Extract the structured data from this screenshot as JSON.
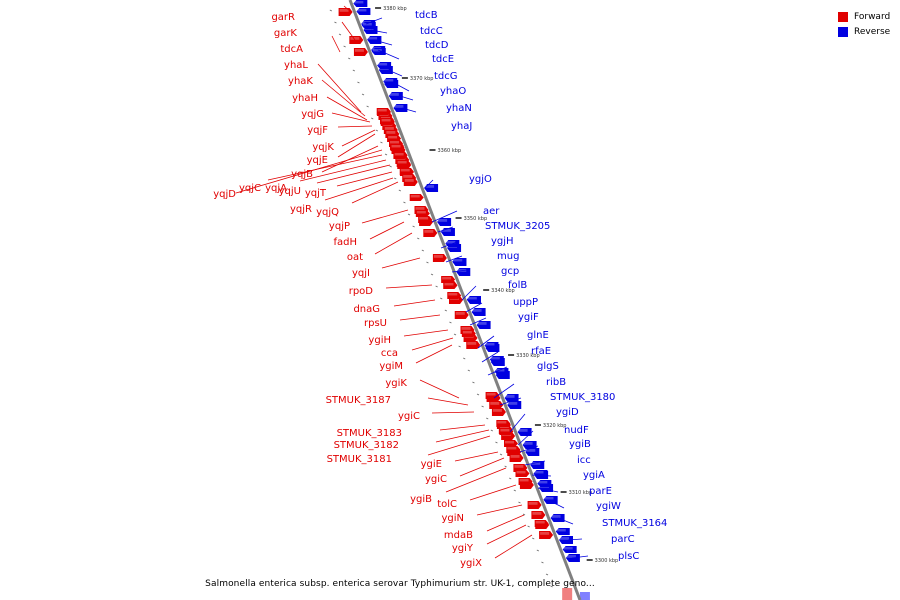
{
  "colors": {
    "forward": "#e00000",
    "reverse": "#0000e0",
    "backbone": "#808080",
    "light_forward": "#f08080",
    "light_reverse": "#8080ff"
  },
  "legend": {
    "forward_label": "Forward",
    "reverse_label": "Reverse"
  },
  "caption": "Salmonella enterica subsp. enterica serovar Typhimurium str. UK-1, complete geno...",
  "ticks": [
    "3380 kbp",
    "3370 kbp",
    "3360 kbp",
    "3350 kbp",
    "3340 kbp",
    "3330 kbp",
    "3320 kbp",
    "3310 kbp",
    "3300 kbp"
  ],
  "forward_genes": [
    "garR",
    "garK",
    "tdcA",
    "yhaL",
    "yhaK",
    "yhaH",
    "yqjG",
    "yqjF",
    "yqjK",
    "yqjE",
    "yqjB",
    "yqjD",
    "yqjC",
    "yqjA",
    "yqjU",
    "yqjT",
    "yqjR",
    "yqjQ",
    "yqjP",
    "fadH",
    "oat",
    "yqjI",
    "rpoD",
    "dnaG",
    "rpsU",
    "ygiH",
    "cca",
    "ygiM",
    "ygiK",
    "STMUK_3187",
    "ygiC",
    "STMUK_3183",
    "STMUK_3182",
    "STMUK_3181",
    "ygiE",
    "ygiC",
    "ygiB",
    "tolC",
    "ygiN",
    "mdaB",
    "ygiY",
    "ygiX"
  ],
  "reverse_genes": [
    "tdcB",
    "tdcC",
    "tdcD",
    "tdcE",
    "tdcG",
    "yhaO",
    "yhaN",
    "yhaJ",
    "ygjO",
    "aer",
    "STMUK_3205",
    "ygjH",
    "mug",
    "gcp",
    "folB",
    "uppP",
    "ygiF",
    "glnE",
    "rfaE",
    "glgS",
    "ribB",
    "STMUK_3180",
    "ygiD",
    "nudF",
    "ygiB",
    "icc",
    "ygiA",
    "parE",
    "ygiW",
    "STMUK_3164",
    "parC",
    "plsC"
  ]
}
